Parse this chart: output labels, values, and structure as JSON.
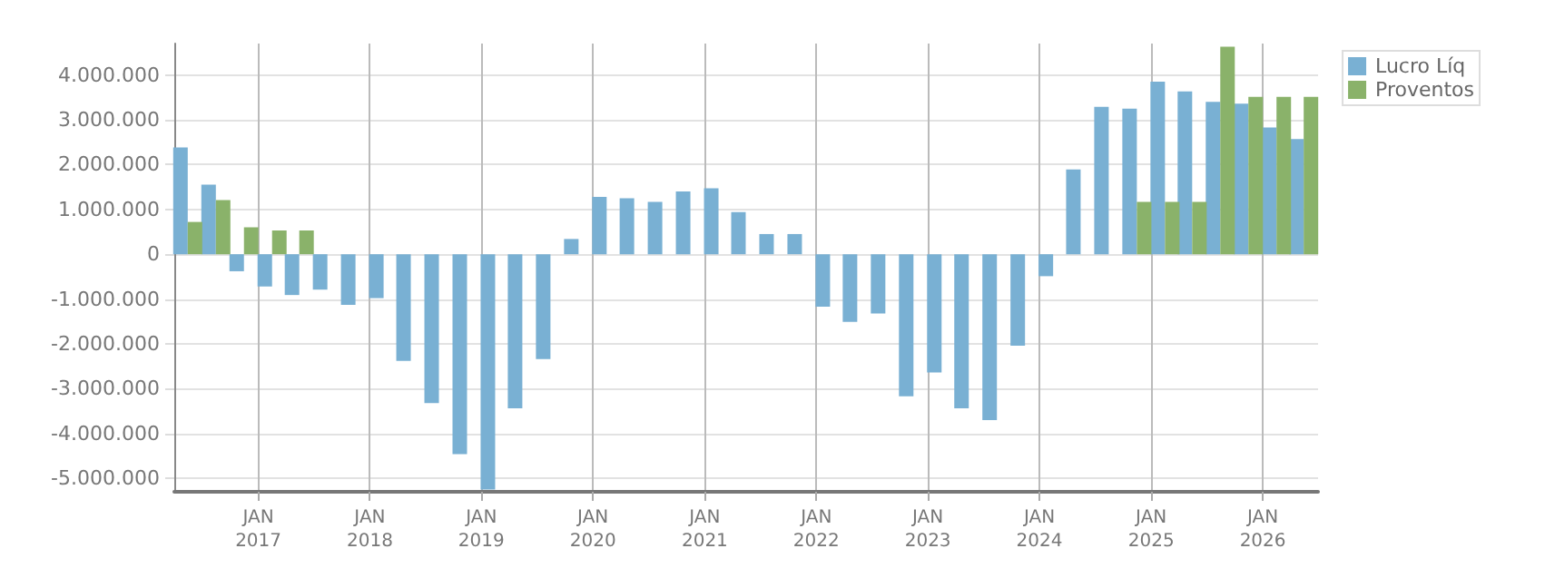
{
  "chart_data": {
    "type": "bar",
    "x": [
      "2016-05-15",
      "2016-08-15",
      "2016-11-15",
      "2017-02-15",
      "2017-05-15",
      "2017-08-15",
      "2017-11-15",
      "2018-02-15",
      "2018-05-15",
      "2018-08-15",
      "2018-11-15",
      "2019-02-15",
      "2019-05-15",
      "2019-08-15",
      "2019-11-15",
      "2020-02-15",
      "2020-05-15",
      "2020-08-15",
      "2020-11-15",
      "2021-02-15",
      "2021-05-15",
      "2021-08-15",
      "2021-11-15",
      "2022-02-15",
      "2022-05-15",
      "2022-08-15",
      "2022-11-15",
      "2023-02-15",
      "2023-05-15",
      "2023-08-15",
      "2023-11-15",
      "2024-02-15",
      "2024-05-15",
      "2024-08-15",
      "2024-11-15",
      "2025-02-15",
      "2025-05-15",
      "2025-08-15",
      "2025-11-15",
      "2026-02-15",
      "2026-05-15"
    ],
    "series": [
      {
        "name": "Lucro Líq",
        "color": "#79b0d3",
        "values": [
          2380000,
          1550000,
          -380000,
          -720000,
          -910000,
          -790000,
          -1130000,
          -980000,
          -2380000,
          -3320000,
          -4460000,
          -5250000,
          -3440000,
          -2340000,
          340000,
          1280000,
          1250000,
          1170000,
          1400000,
          1470000,
          940000,
          450000,
          450000,
          -1170000,
          -1510000,
          -1320000,
          -3170000,
          -2640000,
          -3440000,
          -3700000,
          -2040000,
          -490000,
          1890000,
          3290000,
          3250000,
          3850000,
          3630000,
          3400000,
          3360000,
          2830000,
          2570000
        ]
      },
      {
        "name": "Proventos",
        "color": "#8ab26a",
        "values": [
          720000,
          1210000,
          600000,
          530000,
          530000,
          0,
          0,
          0,
          0,
          0,
          0,
          0,
          0,
          0,
          0,
          0,
          0,
          0,
          0,
          0,
          0,
          0,
          0,
          0,
          0,
          0,
          0,
          0,
          0,
          0,
          0,
          0,
          0,
          0,
          1170000,
          1170000,
          1170000,
          4630000,
          3510000,
          3510000,
          3510000
        ]
      }
    ],
    "xlim": [
      "2016-04-01",
      "2026-07-01"
    ],
    "xticks": [
      {
        "value": "2017-01-01",
        "label": "JAN\n2017"
      },
      {
        "value": "2018-01-01",
        "label": "JAN\n2018"
      },
      {
        "value": "2019-01-01",
        "label": "JAN\n2019"
      },
      {
        "value": "2020-01-01",
        "label": "JAN\n2020"
      },
      {
        "value": "2021-01-01",
        "label": "JAN\n2021"
      },
      {
        "value": "2022-01-01",
        "label": "JAN\n2022"
      },
      {
        "value": "2023-01-01",
        "label": "JAN\n2023"
      },
      {
        "value": "2024-01-01",
        "label": "JAN\n2024"
      },
      {
        "value": "2025-01-01",
        "label": "JAN\n2025"
      },
      {
        "value": "2026-01-01",
        "label": "JAN\n2026"
      }
    ],
    "ylim": [
      -5300000,
      4700000
    ],
    "yticks": [
      {
        "value": -5000000,
        "label": "-5.000.000"
      },
      {
        "value": -4000000,
        "label": "-4.000.000"
      },
      {
        "value": -3000000,
        "label": "-3.000.000"
      },
      {
        "value": -2000000,
        "label": "-2.000.000"
      },
      {
        "value": -1000000,
        "label": "-1.000.000"
      },
      {
        "value": 0,
        "label": "0"
      },
      {
        "value": 1000000,
        "label": "1.000.000"
      },
      {
        "value": 2000000,
        "label": "2.000.000"
      },
      {
        "value": 3000000,
        "label": "3.000.000"
      },
      {
        "value": 4000000,
        "label": "4.000.000"
      }
    ],
    "grid": true,
    "legend": "top right"
  }
}
